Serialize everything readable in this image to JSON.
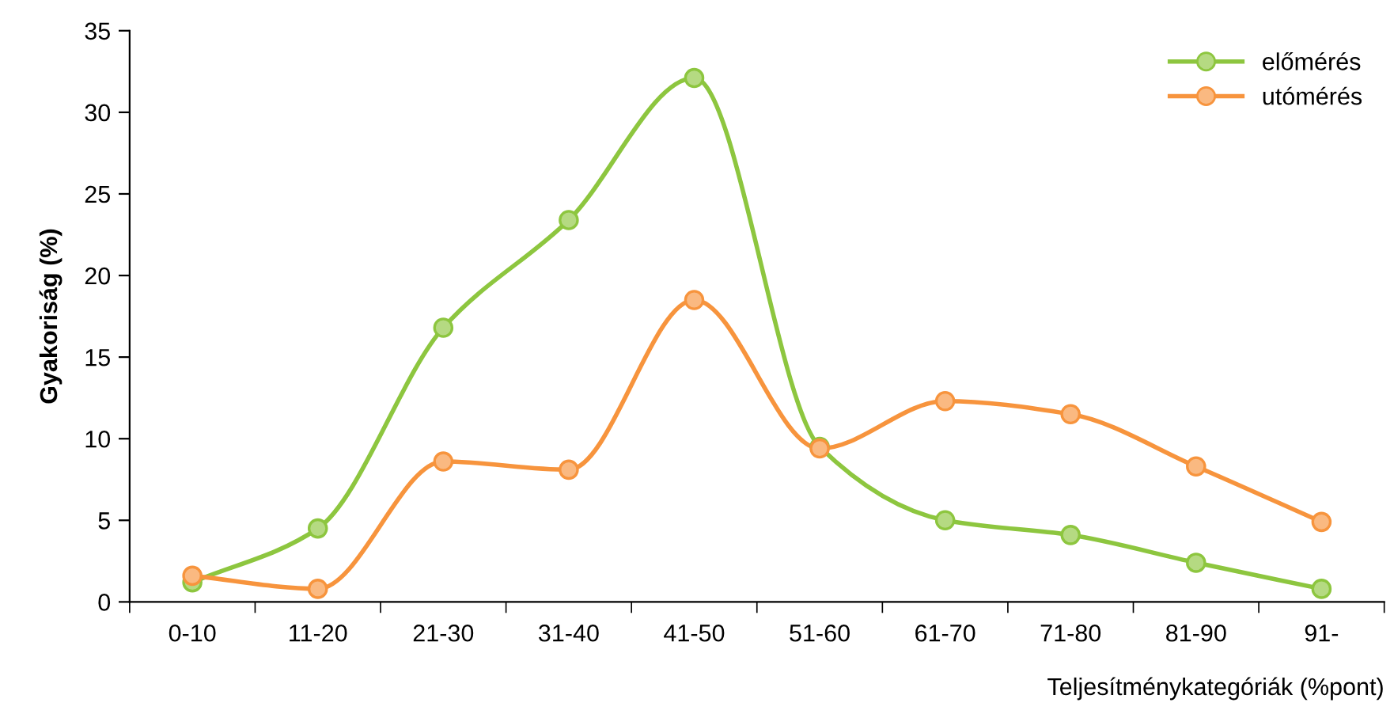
{
  "chart_data": {
    "type": "line",
    "xlabel": "Teljesítménykategóriák (%pont)",
    "ylabel": "Gyakoriság (%)",
    "categories": [
      "0-10",
      "11-20",
      "21-30",
      "31-40",
      "41-50",
      "51-60",
      "61-70",
      "71-80",
      "81-90",
      "91-"
    ],
    "series": [
      {
        "name": "előmérés",
        "color": "#8dc63f",
        "values": [
          1.2,
          4.5,
          16.8,
          23.4,
          32.1,
          9.5,
          5.0,
          4.1,
          2.4,
          0.8
        ]
      },
      {
        "name": "utómérés",
        "color": "#f7943d",
        "values": [
          1.6,
          0.8,
          8.6,
          8.1,
          18.5,
          9.4,
          12.3,
          11.5,
          8.3,
          4.9
        ]
      }
    ],
    "ylim": [
      0,
      35
    ],
    "yticks": [
      0,
      5,
      10,
      15,
      20,
      25,
      30,
      35
    ],
    "marker": "circle",
    "legend": "top right",
    "grid": false
  }
}
